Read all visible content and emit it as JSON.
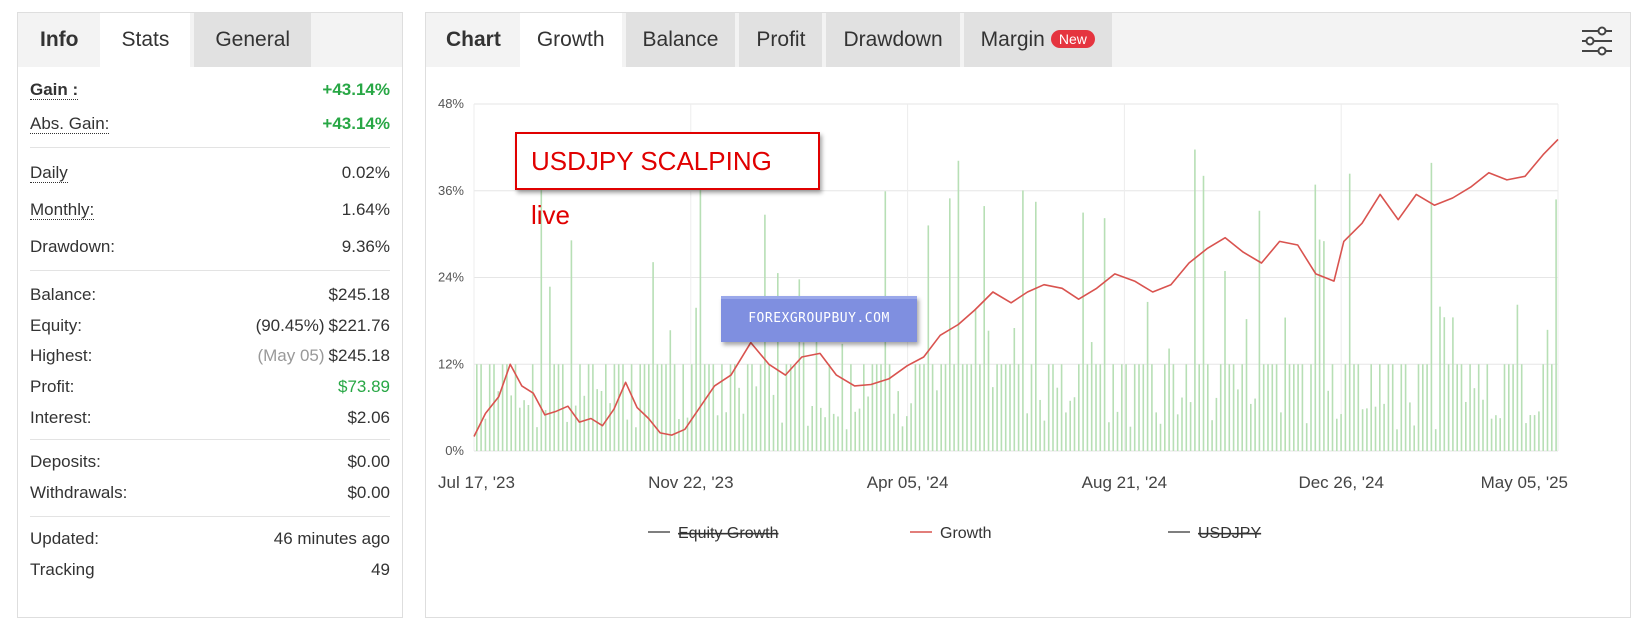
{
  "left_tabs": {
    "header": "Info",
    "stats": "Stats",
    "general": "General"
  },
  "stats": {
    "gain": {
      "label": "Gain :",
      "value": "+43.14%"
    },
    "abs_gain": {
      "label": "Abs. Gain:",
      "value": "+43.14%"
    },
    "daily": {
      "label": "Daily",
      "value": "0.02%"
    },
    "monthly": {
      "label": "Monthly:",
      "value": "1.64%"
    },
    "drawdown": {
      "label": "Drawdown:",
      "value": "9.36%"
    },
    "balance": {
      "label": "Balance:",
      "value": "$245.18"
    },
    "equity": {
      "label": "Equity:",
      "note": "(90.45%)",
      "value": "$221.76"
    },
    "highest": {
      "label": "Highest:",
      "note": "(May 05)",
      "value": "$245.18"
    },
    "profit": {
      "label": "Profit:",
      "value": "$73.89"
    },
    "interest": {
      "label": "Interest:",
      "value": "$2.06"
    },
    "deposits": {
      "label": "Deposits:",
      "value": "$0.00"
    },
    "withdrawals": {
      "label": "Withdrawals:",
      "value": "$0.00"
    },
    "updated": {
      "label": "Updated:",
      "value": "46 minutes ago"
    },
    "tracking": {
      "label": "Tracking",
      "value": "49"
    }
  },
  "right_tabs": {
    "header": "Chart",
    "growth": "Growth",
    "balance": "Balance",
    "profit": "Profit",
    "drawdown": "Drawdown",
    "margin": "Margin",
    "margin_badge": "New"
  },
  "settings_icon": "sliders-icon",
  "overlay_title": "USDJPY SCALPING live",
  "watermark": "FOREXGROUPBUY.COM",
  "colors": {
    "growth_line": "#d9534f",
    "bars": "#b7dfb5",
    "gain_green": "#28a745",
    "badge": "#e5343f",
    "title_red": "#e00000"
  },
  "chart_data": {
    "type": "line",
    "x_tick_labels": [
      "Jul 17, '23",
      "Nov 22, '23",
      "Apr 05, '24",
      "Aug 21, '24",
      "Dec 26, '24",
      "May 05, '25"
    ],
    "y_tick_labels": [
      "0%",
      "12%",
      "24%",
      "36%",
      "48%"
    ],
    "ylim": [
      0,
      48
    ],
    "grid": true,
    "legend_position": "bottom",
    "legend": [
      {
        "name": "Equity Growth",
        "hidden": true
      },
      {
        "name": "Growth",
        "hidden": false
      },
      {
        "name": "USDJPY",
        "hidden": true
      }
    ],
    "series": [
      {
        "name": "Growth",
        "x": [
          "2023-07-17",
          "2023-07-24",
          "2023-08-01",
          "2023-08-08",
          "2023-08-15",
          "2023-08-22",
          "2023-08-29",
          "2023-09-05",
          "2023-09-12",
          "2023-09-19",
          "2023-09-26",
          "2023-10-03",
          "2023-10-10",
          "2023-10-17",
          "2023-10-24",
          "2023-10-31",
          "2023-11-07",
          "2023-11-14",
          "2023-11-22",
          "2023-12-01",
          "2023-12-10",
          "2023-12-20",
          "2024-01-01",
          "2024-01-12",
          "2024-01-22",
          "2024-02-01",
          "2024-02-12",
          "2024-02-22",
          "2024-03-04",
          "2024-03-14",
          "2024-03-25",
          "2024-04-05",
          "2024-04-15",
          "2024-04-25",
          "2024-05-06",
          "2024-05-16",
          "2024-05-27",
          "2024-06-07",
          "2024-06-17",
          "2024-06-27",
          "2024-07-08",
          "2024-07-18",
          "2024-07-29",
          "2024-08-09",
          "2024-08-21",
          "2024-09-01",
          "2024-09-12",
          "2024-09-23",
          "2024-10-04",
          "2024-10-15",
          "2024-10-26",
          "2024-11-06",
          "2024-11-17",
          "2024-11-28",
          "2024-12-09",
          "2024-12-20",
          "2024-12-26",
          "2025-01-06",
          "2025-01-17",
          "2025-01-28",
          "2025-02-08",
          "2025-02-19",
          "2025-03-02",
          "2025-03-13",
          "2025-03-24",
          "2025-04-04",
          "2025-04-15",
          "2025-04-26",
          "2025-05-05"
        ],
        "y": [
          2.0,
          5.2,
          7.5,
          12.0,
          9.0,
          8.0,
          5.0,
          5.5,
          6.2,
          4.0,
          4.5,
          3.5,
          5.8,
          9.5,
          6.0,
          4.5,
          2.5,
          2.2,
          3.0,
          6.0,
          9.0,
          10.5,
          15.0,
          12.0,
          10.5,
          13.0,
          13.5,
          10.5,
          9.0,
          9.2,
          10.0,
          11.8,
          13.0,
          16.0,
          17.5,
          19.5,
          22.0,
          20.5,
          22.0,
          23.0,
          22.5,
          21.0,
          22.5,
          24.5,
          23.5,
          22.0,
          23.0,
          26.0,
          28.0,
          29.5,
          27.5,
          26.0,
          29.0,
          28.5,
          24.5,
          23.5,
          29.0,
          31.5,
          35.5,
          32.0,
          35.5,
          34.0,
          35.0,
          36.5,
          38.5,
          37.5,
          38.0,
          41.0,
          43.1
        ]
      }
    ]
  }
}
